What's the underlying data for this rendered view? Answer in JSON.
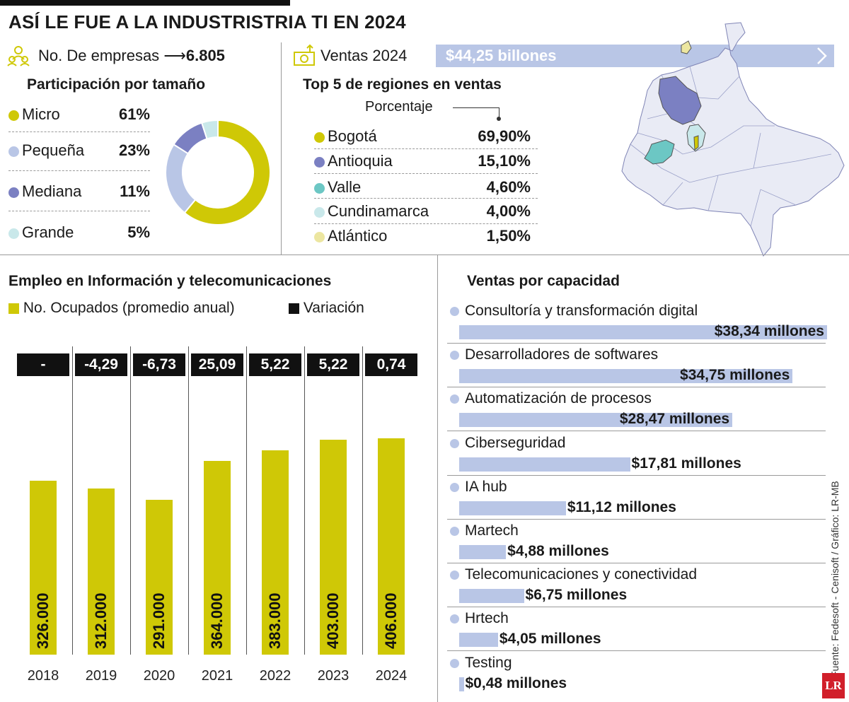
{
  "title": "ASÍ LE FUE A LA INDUSTRISTRIA TI EN 2024",
  "empresas": {
    "label": "No. De empresas",
    "value": "6.805"
  },
  "ventas": {
    "label": "Ventas 2024",
    "value": "$44,25 billones"
  },
  "participacion": {
    "title": "Participación por tamaño",
    "items": [
      {
        "label": "Micro",
        "pct": "61%",
        "value": 61,
        "color": "#cfc806"
      },
      {
        "label": "Pequeña",
        "pct": "23%",
        "value": 23,
        "color": "#b9c6e6"
      },
      {
        "label": "Mediana",
        "pct": "11%",
        "value": 11,
        "color": "#7b80c2"
      },
      {
        "label": "Grande",
        "pct": "5%",
        "value": 5,
        "color": "#c9e8ea"
      }
    ]
  },
  "regiones": {
    "title": "Top 5 de regiones en ventas",
    "subtitle": "Porcentaje",
    "items": [
      {
        "label": "Bogotá",
        "pct": "69,90%",
        "color": "#cfc806"
      },
      {
        "label": "Antioquia",
        "pct": "15,10%",
        "color": "#7b80c2"
      },
      {
        "label": "Valle",
        "pct": "4,60%",
        "color": "#6cc7c4"
      },
      {
        "label": "Cundinamarca",
        "pct": "4,00%",
        "color": "#c9e8ea"
      },
      {
        "label": "Atlántico",
        "pct": "1,50%",
        "color": "#ece6a0"
      }
    ]
  },
  "empleo": {
    "title": "Empleo en Información y telecomunicaciones",
    "legend_ocupados": "No. Ocupados (promedio anual)",
    "legend_variacion": "Variación"
  },
  "capacidad": {
    "title": "Ventas por capacidad",
    "items": [
      {
        "label": "Consultoría y transformación digital",
        "value_label": "$38,34 millones",
        "value": 38.34
      },
      {
        "label": "Desarrolladores de softwares",
        "value_label": "$34,75 millones",
        "value": 34.75
      },
      {
        "label": "Automatización de procesos",
        "value_label": "$28,47 millones",
        "value": 28.47
      },
      {
        "label": "Ciberseguridad",
        "value_label": "$17,81 millones",
        "value": 17.81
      },
      {
        "label": "IA hub",
        "value_label": "$11,12 millones",
        "value": 11.12
      },
      {
        "label": "Martech",
        "value_label": "$4,88 millones",
        "value": 4.88
      },
      {
        "label": "Telecomunicaciones y conectividad",
        "value_label": "$6,75 millones",
        "value": 6.75
      },
      {
        "label": "Hrtech",
        "value_label": "$4,05 millones",
        "value": 4.05
      },
      {
        "label": "Testing",
        "value_label": "$0,48 millones",
        "value": 0.48
      }
    ]
  },
  "source": "Fuente: Fedesoft - Cenisoft / Gráfico: LR-MB",
  "logo": "LR",
  "colors": {
    "accent": "#cfc806",
    "blue": "#b9c6e6",
    "purple": "#7b80c2",
    "black": "#111111"
  },
  "chart_data": [
    {
      "type": "bar",
      "title": "Empleo en Información y telecomunicaciones",
      "categories": [
        "2018",
        "2019",
        "2020",
        "2021",
        "2022",
        "2023",
        "2024"
      ],
      "series": [
        {
          "name": "No. Ocupados (promedio anual)",
          "values": [
            326000,
            312000,
            291000,
            364000,
            383000,
            403000,
            406000
          ],
          "labels": [
            "326.000",
            "312.000",
            "291.000",
            "364.000",
            "383.000",
            "403.000",
            "406.000"
          ]
        },
        {
          "name": "Variación",
          "labels": [
            "-",
            "-4,29",
            "-6,73",
            "25,09",
            "5,22",
            "5,22",
            "0,74"
          ]
        }
      ],
      "ylim": [
        0,
        406000
      ]
    },
    {
      "type": "pie",
      "title": "Participación por tamaño",
      "categories": [
        "Micro",
        "Pequeña",
        "Mediana",
        "Grande"
      ],
      "values": [
        61,
        23,
        11,
        5
      ]
    }
  ]
}
